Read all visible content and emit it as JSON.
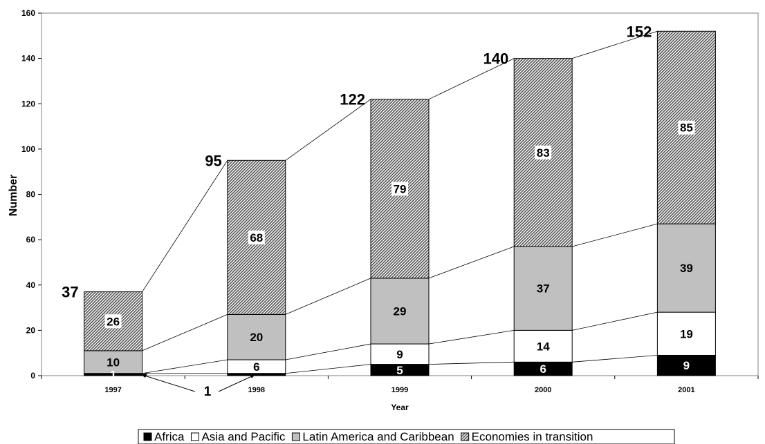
{
  "chart_data": {
    "type": "bar",
    "stacked": true,
    "categories": [
      "1997",
      "1998",
      "1999",
      "2000",
      "2001"
    ],
    "series": [
      {
        "name": "Africa",
        "values": [
          1,
          1,
          5,
          6,
          9
        ],
        "color": "#000000"
      },
      {
        "name": "Asia and Pacific",
        "values": [
          0,
          6,
          9,
          14,
          19
        ],
        "color": "#ffffff"
      },
      {
        "name": "Latin America and Caribbean",
        "values": [
          10,
          20,
          29,
          37,
          39
        ],
        "color": "#c0c0c0"
      },
      {
        "name": "Economies in transition",
        "values": [
          26,
          68,
          79,
          83,
          85
        ],
        "color": "#808080",
        "pattern": "hatch"
      }
    ],
    "segment_labels": [
      [
        "1",
        "",
        "10",
        "26"
      ],
      [
        "",
        "6",
        "20",
        "68"
      ],
      [
        "5",
        "9",
        "29",
        "79"
      ],
      [
        "6",
        "14",
        "37",
        "83"
      ],
      [
        "9",
        "19",
        "39",
        "85"
      ]
    ],
    "totals": [
      37,
      95,
      122,
      140,
      152
    ],
    "callout": "1",
    "xlabel": "Year",
    "ylabel": "Number",
    "ylim": [
      0,
      160
    ],
    "yticks": [
      0,
      20,
      40,
      60,
      80,
      100,
      120,
      140,
      160
    ],
    "connector_lines": true,
    "grid": false,
    "legend_position": "bottom-center"
  }
}
